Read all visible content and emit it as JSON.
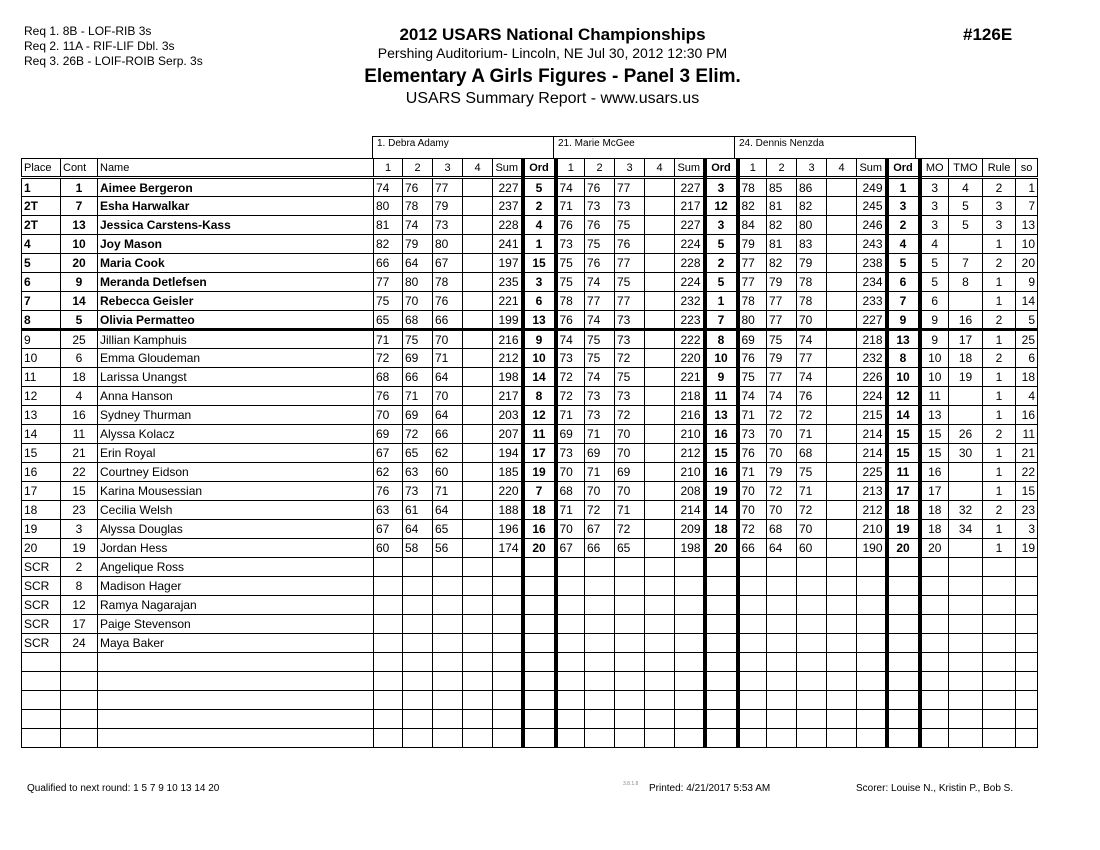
{
  "requirements": [
    "Req  1.  8B - LOF-RIB 3s",
    "Req  2.  11A - RIF-LIF Dbl. 3s",
    "Req  3.  26B - LOIF-ROIB Serp. 3s"
  ],
  "header": {
    "title": "2012 USARS National Championships",
    "venue": "Pershing Auditorium- Lincoln, NE  Jul 30, 2012  12:30 PM",
    "event": "Elementary A Girls Figures - Panel 3 Elim.",
    "report": "USARS Summary Report - www.usars.us",
    "event_number": "#126E"
  },
  "judges": [
    "1.  Debra Adamy",
    "21.  Marie McGee",
    "24.  Dennis Nenzda"
  ],
  "columns": {
    "place": "Place",
    "cont": "Cont",
    "name": "Name",
    "judge_cols": [
      "1",
      "2",
      "3",
      "4",
      "Sum",
      "Ord"
    ],
    "mo": "MO",
    "tmo": "TMO",
    "rule": "Rule",
    "so": "so"
  },
  "rows": [
    {
      "place": "1",
      "cont": "1",
      "name": "Aimee Bergeron",
      "q": true,
      "j": [
        [
          "74",
          "76",
          "77",
          "",
          "227",
          "5"
        ],
        [
          "74",
          "76",
          "77",
          "",
          "227",
          "3"
        ],
        [
          "78",
          "85",
          "86",
          "",
          "249",
          "1"
        ]
      ],
      "mo": "3",
      "tmo": "4",
      "rule": "2",
      "so": "1"
    },
    {
      "place": "2T",
      "cont": "7",
      "name": "Esha Harwalkar",
      "q": true,
      "j": [
        [
          "80",
          "78",
          "79",
          "",
          "237",
          "2"
        ],
        [
          "71",
          "73",
          "73",
          "",
          "217",
          "12"
        ],
        [
          "82",
          "81",
          "82",
          "",
          "245",
          "3"
        ]
      ],
      "mo": "3",
      "tmo": "5",
      "rule": "3",
      "so": "7"
    },
    {
      "place": "2T",
      "cont": "13",
      "name": "Jessica Carstens-Kass",
      "q": true,
      "j": [
        [
          "81",
          "74",
          "73",
          "",
          "228",
          "4"
        ],
        [
          "76",
          "76",
          "75",
          "",
          "227",
          "3"
        ],
        [
          "84",
          "82",
          "80",
          "",
          "246",
          "2"
        ]
      ],
      "mo": "3",
      "tmo": "5",
      "rule": "3",
      "so": "13"
    },
    {
      "place": "4",
      "cont": "10",
      "name": "Joy Mason",
      "q": true,
      "j": [
        [
          "82",
          "79",
          "80",
          "",
          "241",
          "1"
        ],
        [
          "73",
          "75",
          "76",
          "",
          "224",
          "5"
        ],
        [
          "79",
          "81",
          "83",
          "",
          "243",
          "4"
        ]
      ],
      "mo": "4",
      "tmo": "",
      "rule": "1",
      "so": "10"
    },
    {
      "place": "5",
      "cont": "20",
      "name": "Maria Cook",
      "q": true,
      "j": [
        [
          "66",
          "64",
          "67",
          "",
          "197",
          "15"
        ],
        [
          "75",
          "76",
          "77",
          "",
          "228",
          "2"
        ],
        [
          "77",
          "82",
          "79",
          "",
          "238",
          "5"
        ]
      ],
      "mo": "5",
      "tmo": "7",
      "rule": "2",
      "so": "20"
    },
    {
      "place": "6",
      "cont": "9",
      "name": "Meranda Detlefsen",
      "q": true,
      "j": [
        [
          "77",
          "80",
          "78",
          "",
          "235",
          "3"
        ],
        [
          "75",
          "74",
          "75",
          "",
          "224",
          "5"
        ],
        [
          "77",
          "79",
          "78",
          "",
          "234",
          "6"
        ]
      ],
      "mo": "5",
      "tmo": "8",
      "rule": "1",
      "so": "9"
    },
    {
      "place": "7",
      "cont": "14",
      "name": "Rebecca Geisler",
      "q": true,
      "j": [
        [
          "75",
          "70",
          "76",
          "",
          "221",
          "6"
        ],
        [
          "78",
          "77",
          "77",
          "",
          "232",
          "1"
        ],
        [
          "78",
          "77",
          "78",
          "",
          "233",
          "7"
        ]
      ],
      "mo": "6",
      "tmo": "",
      "rule": "1",
      "so": "14"
    },
    {
      "place": "8",
      "cont": "5",
      "name": "Olivia Permatteo",
      "q": true,
      "j": [
        [
          "65",
          "68",
          "66",
          "",
          "199",
          "13"
        ],
        [
          "76",
          "74",
          "73",
          "",
          "223",
          "7"
        ],
        [
          "80",
          "77",
          "70",
          "",
          "227",
          "9"
        ]
      ],
      "mo": "9",
      "tmo": "16",
      "rule": "2",
      "so": "5"
    },
    {
      "place": "9",
      "cont": "25",
      "name": "Jillian Kamphuis",
      "q": false,
      "j": [
        [
          "71",
          "75",
          "70",
          "",
          "216",
          "9"
        ],
        [
          "74",
          "75",
          "73",
          "",
          "222",
          "8"
        ],
        [
          "69",
          "75",
          "74",
          "",
          "218",
          "13"
        ]
      ],
      "mo": "9",
      "tmo": "17",
      "rule": "1",
      "so": "25"
    },
    {
      "place": "10",
      "cont": "6",
      "name": "Emma Gloudeman",
      "q": false,
      "j": [
        [
          "72",
          "69",
          "71",
          "",
          "212",
          "10"
        ],
        [
          "73",
          "75",
          "72",
          "",
          "220",
          "10"
        ],
        [
          "76",
          "79",
          "77",
          "",
          "232",
          "8"
        ]
      ],
      "mo": "10",
      "tmo": "18",
      "rule": "2",
      "so": "6"
    },
    {
      "place": "11",
      "cont": "18",
      "name": "Larissa Unangst",
      "q": false,
      "j": [
        [
          "68",
          "66",
          "64",
          "",
          "198",
          "14"
        ],
        [
          "72",
          "74",
          "75",
          "",
          "221",
          "9"
        ],
        [
          "75",
          "77",
          "74",
          "",
          "226",
          "10"
        ]
      ],
      "mo": "10",
      "tmo": "19",
      "rule": "1",
      "so": "18"
    },
    {
      "place": "12",
      "cont": "4",
      "name": "Anna Hanson",
      "q": false,
      "j": [
        [
          "76",
          "71",
          "70",
          "",
          "217",
          "8"
        ],
        [
          "72",
          "73",
          "73",
          "",
          "218",
          "11"
        ],
        [
          "74",
          "74",
          "76",
          "",
          "224",
          "12"
        ]
      ],
      "mo": "11",
      "tmo": "",
      "rule": "1",
      "so": "4"
    },
    {
      "place": "13",
      "cont": "16",
      "name": "Sydney Thurman",
      "q": false,
      "j": [
        [
          "70",
          "69",
          "64",
          "",
          "203",
          "12"
        ],
        [
          "71",
          "73",
          "72",
          "",
          "216",
          "13"
        ],
        [
          "71",
          "72",
          "72",
          "",
          "215",
          "14"
        ]
      ],
      "mo": "13",
      "tmo": "",
      "rule": "1",
      "so": "16"
    },
    {
      "place": "14",
      "cont": "11",
      "name": "Alyssa Kolacz",
      "q": false,
      "j": [
        [
          "69",
          "72",
          "66",
          "",
          "207",
          "11"
        ],
        [
          "69",
          "71",
          "70",
          "",
          "210",
          "16"
        ],
        [
          "73",
          "70",
          "71",
          "",
          "214",
          "15"
        ]
      ],
      "mo": "15",
      "tmo": "26",
      "rule": "2",
      "so": "11"
    },
    {
      "place": "15",
      "cont": "21",
      "name": "Erin Royal",
      "q": false,
      "j": [
        [
          "67",
          "65",
          "62",
          "",
          "194",
          "17"
        ],
        [
          "73",
          "69",
          "70",
          "",
          "212",
          "15"
        ],
        [
          "76",
          "70",
          "68",
          "",
          "214",
          "15"
        ]
      ],
      "mo": "15",
      "tmo": "30",
      "rule": "1",
      "so": "21"
    },
    {
      "place": "16",
      "cont": "22",
      "name": "Courtney Eidson",
      "q": false,
      "j": [
        [
          "62",
          "63",
          "60",
          "",
          "185",
          "19"
        ],
        [
          "70",
          "71",
          "69",
          "",
          "210",
          "16"
        ],
        [
          "71",
          "79",
          "75",
          "",
          "225",
          "11"
        ]
      ],
      "mo": "16",
      "tmo": "",
      "rule": "1",
      "so": "22"
    },
    {
      "place": "17",
      "cont": "15",
      "name": "Karina Mousessian",
      "q": false,
      "j": [
        [
          "76",
          "73",
          "71",
          "",
          "220",
          "7"
        ],
        [
          "68",
          "70",
          "70",
          "",
          "208",
          "19"
        ],
        [
          "70",
          "72",
          "71",
          "",
          "213",
          "17"
        ]
      ],
      "mo": "17",
      "tmo": "",
      "rule": "1",
      "so": "15"
    },
    {
      "place": "18",
      "cont": "23",
      "name": "Cecilia Welsh",
      "q": false,
      "j": [
        [
          "63",
          "61",
          "64",
          "",
          "188",
          "18"
        ],
        [
          "71",
          "72",
          "71",
          "",
          "214",
          "14"
        ],
        [
          "70",
          "70",
          "72",
          "",
          "212",
          "18"
        ]
      ],
      "mo": "18",
      "tmo": "32",
      "rule": "2",
      "so": "23"
    },
    {
      "place": "19",
      "cont": "3",
      "name": "Alyssa Douglas",
      "q": false,
      "j": [
        [
          "67",
          "64",
          "65",
          "",
          "196",
          "16"
        ],
        [
          "70",
          "67",
          "72",
          "",
          "209",
          "18"
        ],
        [
          "72",
          "68",
          "70",
          "",
          "210",
          "19"
        ]
      ],
      "mo": "18",
      "tmo": "34",
      "rule": "1",
      "so": "3"
    },
    {
      "place": "20",
      "cont": "19",
      "name": "Jordan Hess",
      "q": false,
      "j": [
        [
          "60",
          "58",
          "56",
          "",
          "174",
          "20"
        ],
        [
          "67",
          "66",
          "65",
          "",
          "198",
          "20"
        ],
        [
          "66",
          "64",
          "60",
          "",
          "190",
          "20"
        ]
      ],
      "mo": "20",
      "tmo": "",
      "rule": "1",
      "so": "19"
    },
    {
      "place": "SCR",
      "cont": "2",
      "name": "Angelique Ross",
      "q": false
    },
    {
      "place": "SCR",
      "cont": "8",
      "name": "Madison Hager",
      "q": false
    },
    {
      "place": "SCR",
      "cont": "12",
      "name": "Ramya Nagarajan",
      "q": false
    },
    {
      "place": "SCR",
      "cont": "17",
      "name": "Paige Stevenson",
      "q": false
    },
    {
      "place": "SCR",
      "cont": "24",
      "name": "Maya Baker",
      "q": false
    },
    {
      "place": "",
      "cont": "",
      "name": "",
      "q": false
    },
    {
      "place": "",
      "cont": "",
      "name": "",
      "q": false
    },
    {
      "place": "",
      "cont": "",
      "name": "",
      "q": false
    },
    {
      "place": "",
      "cont": "",
      "name": "",
      "q": false
    },
    {
      "place": "",
      "cont": "",
      "name": "",
      "q": false
    }
  ],
  "footer": {
    "qualified": "Qualified to next round:   1 5 7 9 10 13 14 20",
    "version": "3.8.1.8",
    "printed": "Printed:  4/21/2017  5:53 AM",
    "scorer": "Scorer:   Louise N., Kristin P., Bob S."
  }
}
